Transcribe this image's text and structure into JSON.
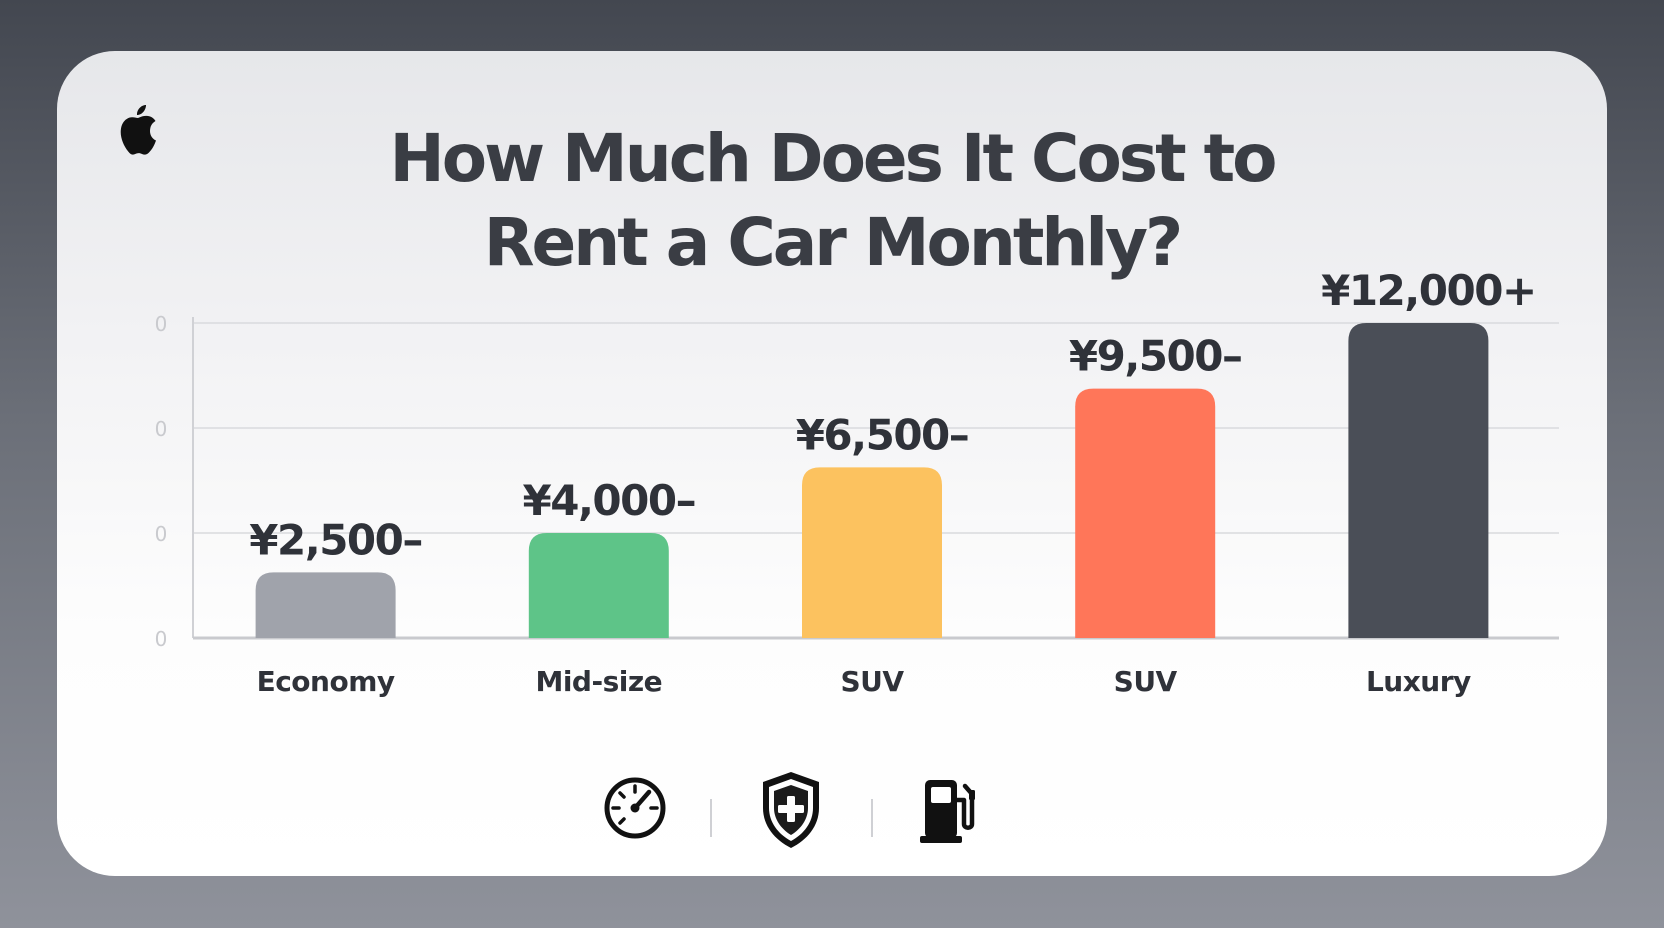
{
  "title_lines": [
    "How Much Does It Cost to",
    "Rent a Car Monthly?"
  ],
  "logo": "apple-logo-icon",
  "chart_data": {
    "type": "bar",
    "title": "How Much Does It Cost to Rent a Car Monthly?",
    "categories": [
      "Economy",
      "Mid-size",
      "SUV",
      "SUV",
      "Luxury"
    ],
    "values": [
      2500,
      4000,
      6500,
      9500,
      12000
    ],
    "data_labels": [
      "¥2,500–",
      "¥4,000–",
      "¥6,500–",
      "¥9,500–",
      "¥12,000+"
    ],
    "colors": [
      "#a0a3ab",
      "#5ec488",
      "#fcc25f",
      "#ff7659",
      "#4a4e57"
    ],
    "ytick_labels": [
      "0",
      "0",
      "0",
      "0"
    ],
    "xlabel": "",
    "ylabel": "",
    "grid": true,
    "legend": "none"
  },
  "footer_icons": [
    "speedometer-icon",
    "shield-plus-icon",
    "fuel-pump-icon"
  ]
}
